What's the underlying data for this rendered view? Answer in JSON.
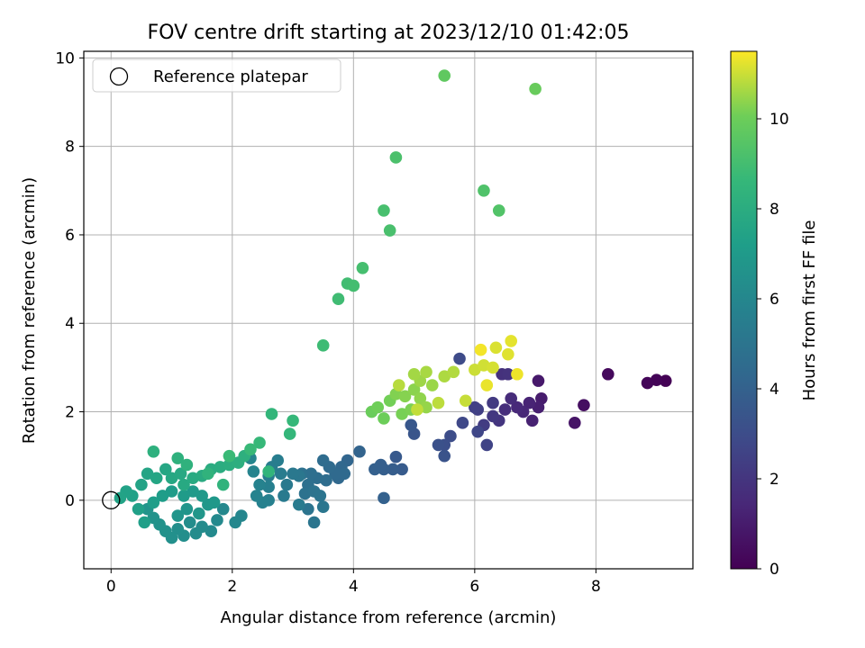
{
  "chart_data": {
    "type": "scatter",
    "title": "FOV centre drift starting at 2023/12/10 01:42:05",
    "xlabel": "Angular distance from reference (arcmin)",
    "ylabel": "Rotation from reference (arcmin)",
    "xlim": [
      -0.45,
      9.6
    ],
    "ylim": [
      -1.55,
      10.15
    ],
    "xticks": [
      0,
      2,
      4,
      6,
      8
    ],
    "yticks": [
      0,
      2,
      4,
      6,
      8,
      10
    ],
    "grid": true,
    "legend": {
      "placement": "top-left",
      "entries": [
        "Reference platepar"
      ]
    },
    "reference_point": {
      "x": 0,
      "y": 0
    },
    "colorbar": {
      "label": "Hours from first FF file",
      "colormap": "viridis",
      "range": [
        0,
        11.5
      ],
      "ticks": [
        0,
        2,
        4,
        6,
        8,
        10
      ]
    },
    "points": [
      [
        9.15,
        2.7,
        0.05
      ],
      [
        9.0,
        2.72,
        0.1
      ],
      [
        8.85,
        2.65,
        0.15
      ],
      [
        8.2,
        2.85,
        0.3
      ],
      [
        7.8,
        2.15,
        0.5
      ],
      [
        7.65,
        1.75,
        0.7
      ],
      [
        7.05,
        2.7,
        0.9
      ],
      [
        7.1,
        2.3,
        1.0
      ],
      [
        7.05,
        2.1,
        1.1
      ],
      [
        6.95,
        1.8,
        1.2
      ],
      [
        6.9,
        2.2,
        1.3
      ],
      [
        6.8,
        2.0,
        1.4
      ],
      [
        6.7,
        2.1,
        1.5
      ],
      [
        6.6,
        2.3,
        1.6
      ],
      [
        6.5,
        2.05,
        1.7
      ],
      [
        6.45,
        2.85,
        1.8
      ],
      [
        6.55,
        2.85,
        1.9
      ],
      [
        6.4,
        1.8,
        2.0
      ],
      [
        6.3,
        1.9,
        2.1
      ],
      [
        6.3,
        2.2,
        2.2
      ],
      [
        6.15,
        1.7,
        2.3
      ],
      [
        6.05,
        2.05,
        2.4
      ],
      [
        6.0,
        2.1,
        2.5
      ],
      [
        6.2,
        1.25,
        2.6
      ],
      [
        6.05,
        1.55,
        2.7
      ],
      [
        5.8,
        1.75,
        2.8
      ],
      [
        5.75,
        3.2,
        2.9
      ],
      [
        5.6,
        1.45,
        3.0
      ],
      [
        5.5,
        1.25,
        3.1
      ],
      [
        5.4,
        1.25,
        3.2
      ],
      [
        5.5,
        1.0,
        3.3
      ],
      [
        5.0,
        1.5,
        3.4
      ],
      [
        4.95,
        1.7,
        3.5
      ],
      [
        4.7,
        0.98,
        3.6
      ],
      [
        4.8,
        0.7,
        3.7
      ],
      [
        4.65,
        0.7,
        3.8
      ],
      [
        4.5,
        0.7,
        3.85
      ],
      [
        4.45,
        0.8,
        3.9
      ],
      [
        4.35,
        0.7,
        3.95
      ],
      [
        4.5,
        0.05,
        4.0
      ],
      [
        4.1,
        1.1,
        4.1
      ],
      [
        3.9,
        0.9,
        4.2
      ],
      [
        3.8,
        0.75,
        4.3
      ],
      [
        3.75,
        0.5,
        4.35
      ],
      [
        3.7,
        0.6,
        4.4
      ],
      [
        3.85,
        0.6,
        4.45
      ],
      [
        3.6,
        0.75,
        4.5
      ],
      [
        3.5,
        0.9,
        4.55
      ],
      [
        3.55,
        0.45,
        4.6
      ],
      [
        3.4,
        0.5,
        4.65
      ],
      [
        3.3,
        0.6,
        4.7
      ],
      [
        3.25,
        0.35,
        4.75
      ],
      [
        3.15,
        0.6,
        4.8
      ],
      [
        3.2,
        0.15,
        4.85
      ],
      [
        3.35,
        0.2,
        4.9
      ],
      [
        3.45,
        0.1,
        4.95
      ],
      [
        3.25,
        -0.2,
        5.0
      ],
      [
        3.35,
        -0.5,
        5.05
      ],
      [
        3.5,
        -0.15,
        5.1
      ],
      [
        3.1,
        0.55,
        5.15
      ],
      [
        3.0,
        0.6,
        5.2
      ],
      [
        2.9,
        0.35,
        5.25
      ],
      [
        2.85,
        0.1,
        5.3
      ],
      [
        3.1,
        -0.1,
        5.35
      ],
      [
        2.8,
        0.6,
        5.4
      ],
      [
        2.75,
        0.9,
        5.45
      ],
      [
        2.65,
        0.75,
        5.5
      ],
      [
        2.6,
        0.55,
        5.55
      ],
      [
        2.6,
        0.3,
        5.6
      ],
      [
        2.6,
        0.0,
        5.65
      ],
      [
        2.5,
        -0.05,
        5.7
      ],
      [
        2.45,
        0.35,
        5.75
      ],
      [
        2.4,
        0.1,
        5.8
      ],
      [
        2.35,
        0.65,
        5.85
      ],
      [
        2.3,
        0.95,
        5.9
      ],
      [
        2.15,
        -0.35,
        5.95
      ],
      [
        2.05,
        -0.5,
        6.0
      ],
      [
        1.85,
        -0.2,
        6.05
      ],
      [
        1.75,
        -0.45,
        6.1
      ],
      [
        1.65,
        -0.7,
        6.15
      ],
      [
        1.5,
        -0.6,
        6.2
      ],
      [
        1.4,
        -0.75,
        6.25
      ],
      [
        1.3,
        -0.5,
        6.3
      ],
      [
        1.2,
        -0.8,
        6.35
      ],
      [
        1.1,
        -0.65,
        6.4
      ],
      [
        1.0,
        -0.85,
        6.45
      ],
      [
        0.9,
        -0.7,
        6.5
      ],
      [
        0.8,
        -0.55,
        6.55
      ],
      [
        0.7,
        -0.4,
        6.6
      ],
      [
        0.6,
        -0.2,
        6.65
      ],
      [
        1.1,
        -0.35,
        6.7
      ],
      [
        1.25,
        -0.2,
        6.75
      ],
      [
        1.45,
        -0.3,
        6.8
      ],
      [
        1.6,
        -0.1,
        6.85
      ],
      [
        1.7,
        -0.05,
        6.9
      ],
      [
        1.5,
        0.1,
        6.95
      ],
      [
        1.35,
        0.2,
        7.0
      ],
      [
        1.2,
        0.1,
        7.05
      ],
      [
        1.0,
        0.2,
        7.1
      ],
      [
        0.85,
        0.1,
        7.15
      ],
      [
        0.7,
        -0.05,
        7.2
      ],
      [
        0.55,
        -0.5,
        7.25
      ],
      [
        0.45,
        -0.2,
        7.3
      ],
      [
        0.35,
        0.1,
        7.35
      ],
      [
        0.25,
        0.2,
        7.4
      ],
      [
        0.15,
        0.05,
        7.45
      ],
      [
        0.5,
        0.35,
        7.5
      ],
      [
        0.6,
        0.6,
        7.55
      ],
      [
        0.75,
        0.5,
        7.6
      ],
      [
        0.9,
        0.7,
        7.65
      ],
      [
        1.0,
        0.5,
        7.7
      ],
      [
        1.15,
        0.6,
        7.75
      ],
      [
        1.2,
        0.35,
        7.8
      ],
      [
        1.35,
        0.5,
        7.85
      ],
      [
        1.5,
        0.55,
        7.9
      ],
      [
        1.65,
        0.7,
        7.95
      ],
      [
        1.8,
        0.75,
        8.0
      ],
      [
        1.95,
        0.8,
        8.05
      ],
      [
        2.1,
        0.85,
        8.1
      ],
      [
        2.2,
        1.0,
        8.15
      ],
      [
        0.7,
        1.1,
        8.2
      ],
      [
        1.1,
        0.95,
        8.25
      ],
      [
        1.25,
        0.8,
        8.3
      ],
      [
        1.6,
        0.6,
        8.35
      ],
      [
        1.85,
        0.35,
        8.4
      ],
      [
        2.6,
        0.65,
        8.45
      ],
      [
        2.65,
        1.95,
        8.5
      ],
      [
        2.95,
        1.5,
        8.55
      ],
      [
        3.0,
        1.8,
        8.6
      ],
      [
        2.45,
        1.3,
        8.65
      ],
      [
        2.3,
        1.15,
        8.7
      ],
      [
        1.95,
        1.0,
        8.75
      ],
      [
        3.5,
        3.5,
        8.85
      ],
      [
        3.75,
        4.55,
        8.9
      ],
      [
        3.9,
        4.9,
        8.95
      ],
      [
        4.0,
        4.85,
        9.0
      ],
      [
        4.15,
        5.25,
        9.05
      ],
      [
        4.5,
        6.55,
        9.1
      ],
      [
        4.6,
        6.1,
        9.15
      ],
      [
        4.7,
        7.75,
        9.2
      ],
      [
        6.15,
        7.0,
        9.3
      ],
      [
        6.4,
        6.55,
        9.35
      ],
      [
        5.5,
        9.6,
        9.7
      ],
      [
        7.0,
        9.3,
        9.9
      ],
      [
        4.3,
        2.0,
        9.95
      ],
      [
        4.5,
        1.85,
        10.0
      ],
      [
        4.4,
        2.1,
        10.05
      ],
      [
        4.6,
        2.25,
        10.1
      ],
      [
        4.8,
        1.95,
        10.15
      ],
      [
        4.95,
        2.05,
        10.2
      ],
      [
        4.7,
        2.4,
        10.25
      ],
      [
        4.85,
        2.35,
        10.3
      ],
      [
        5.0,
        2.5,
        10.35
      ],
      [
        5.1,
        2.3,
        10.4
      ],
      [
        5.2,
        2.1,
        10.45
      ],
      [
        5.3,
        2.6,
        10.5
      ],
      [
        5.1,
        2.7,
        10.55
      ],
      [
        5.0,
        2.85,
        10.6
      ],
      [
        5.2,
        2.9,
        10.65
      ],
      [
        5.5,
        2.8,
        10.7
      ],
      [
        5.65,
        2.9,
        10.75
      ],
      [
        4.75,
        2.6,
        10.8
      ],
      [
        5.4,
        2.2,
        10.85
      ],
      [
        5.05,
        2.05,
        10.9
      ],
      [
        5.85,
        2.25,
        10.95
      ],
      [
        6.0,
        2.95,
        11.0
      ],
      [
        6.15,
        3.05,
        11.05
      ],
      [
        6.3,
        3.0,
        11.1
      ],
      [
        6.35,
        3.45,
        11.15
      ],
      [
        6.55,
        3.3,
        11.2
      ],
      [
        6.6,
        3.6,
        11.25
      ],
      [
        6.2,
        2.6,
        11.3
      ],
      [
        6.7,
        2.85,
        11.35
      ],
      [
        6.1,
        3.4,
        11.4
      ]
    ]
  }
}
